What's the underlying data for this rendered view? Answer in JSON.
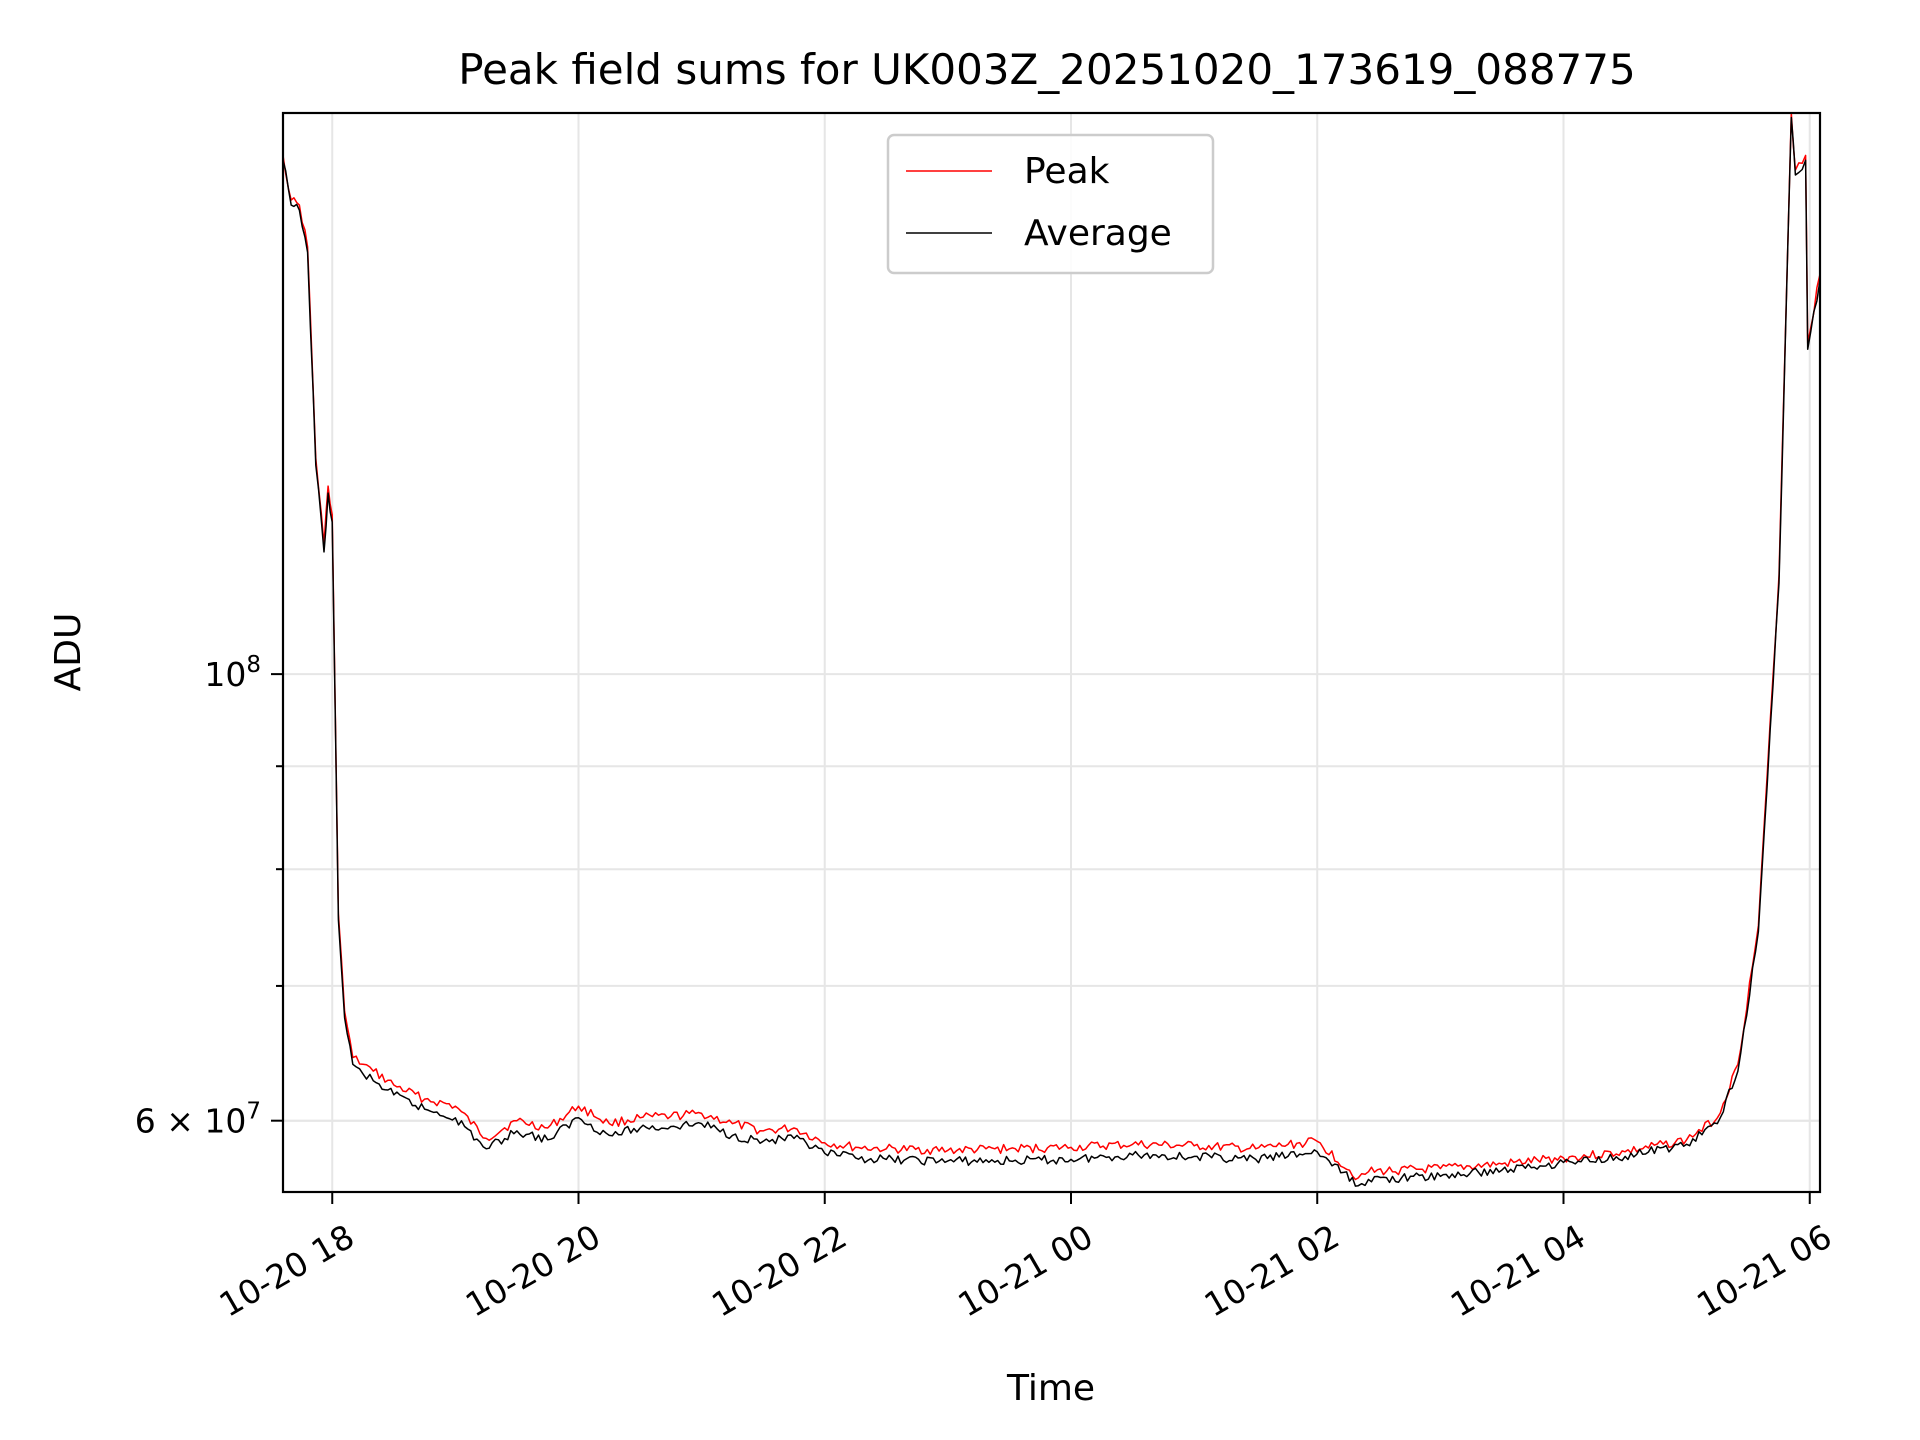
{
  "chart_data": {
    "type": "line",
    "title": "Peak field sums for UK003Z_20251020_173619_088775",
    "xlabel": "Time",
    "ylabel": "ADU",
    "yscale": "log",
    "xlim": [
      "2025-10-20 17:36",
      "2025-10-21 06:05"
    ],
    "ylim": [
      55300000,
      190000000
    ],
    "grid": true,
    "legend_position": "top-center",
    "x_ticks": [
      {
        "label": "10-20 18",
        "value": "2025-10-20 18:00"
      },
      {
        "label": "10-20 20",
        "value": "2025-10-20 20:00"
      },
      {
        "label": "10-20 22",
        "value": "2025-10-20 22:00"
      },
      {
        "label": "10-21 00",
        "value": "2025-10-21 00:00"
      },
      {
        "label": "10-21 02",
        "value": "2025-10-21 02:00"
      },
      {
        "label": "10-21 04",
        "value": "2025-10-21 04:00"
      },
      {
        "label": "10-21 06",
        "value": "2025-10-21 06:00"
      }
    ],
    "y_major_ticks": [
      {
        "label": "10",
        "sup": "8",
        "value": 100000000
      },
      {
        "label": "6 × 10",
        "sup": "7",
        "value": 60000000
      }
    ],
    "y_minor_ticks": [
      60000000,
      70000000,
      80000000,
      90000000
    ],
    "series": [
      {
        "name": "Peak",
        "color": "#ff0000",
        "x": [
          "2025-10-20 17:36",
          "2025-10-20 17:40",
          "2025-10-20 17:44",
          "2025-10-20 17:48",
          "2025-10-20 17:52",
          "2025-10-20 17:56",
          "2025-10-20 17:58",
          "2025-10-20 18:00",
          "2025-10-20 18:03",
          "2025-10-20 18:06",
          "2025-10-20 18:10",
          "2025-10-20 18:15",
          "2025-10-20 18:20",
          "2025-10-20 18:30",
          "2025-10-20 18:45",
          "2025-10-20 19:00",
          "2025-10-20 19:15",
          "2025-10-20 19:30",
          "2025-10-20 19:45",
          "2025-10-20 20:00",
          "2025-10-20 20:15",
          "2025-10-20 20:30",
          "2025-10-20 20:45",
          "2025-10-20 21:00",
          "2025-10-20 21:15",
          "2025-10-20 21:30",
          "2025-10-20 21:45",
          "2025-10-20 22:00",
          "2025-10-20 22:15",
          "2025-10-20 22:30",
          "2025-10-20 23:00",
          "2025-10-20 23:30",
          "2025-10-21 00:00",
          "2025-10-21 00:30",
          "2025-10-21 01:00",
          "2025-10-21 01:30",
          "2025-10-21 02:00",
          "2025-10-21 02:20",
          "2025-10-21 02:25",
          "2025-10-21 03:00",
          "2025-10-21 03:30",
          "2025-10-21 04:00",
          "2025-10-21 04:30",
          "2025-10-21 05:00",
          "2025-10-21 05:15",
          "2025-10-21 05:25",
          "2025-10-21 05:35",
          "2025-10-21 05:45",
          "2025-10-21 05:51",
          "2025-10-21 05:53",
          "2025-10-21 05:58",
          "2025-10-21 05:59",
          "2025-10-21 06:05"
        ],
        "values": [
          181000000,
          172000000,
          171000000,
          163000000,
          128000000,
          116000000,
          124000000,
          120000000,
          76000000,
          68000000,
          64500000,
          64000000,
          63500000,
          62500000,
          61500000,
          61000000,
          58800000,
          60000000,
          59500000,
          61000000,
          59800000,
          60200000,
          60300000,
          60500000,
          59800000,
          59300000,
          59500000,
          58500000,
          58200000,
          58100000,
          58000000,
          58100000,
          58200000,
          58400000,
          58300000,
          58100000,
          58600000,
          56200000,
          56600000,
          56800000,
          57100000,
          57500000,
          57900000,
          58700000,
          60200000,
          64000000,
          75000000,
          112000000,
          190000000,
          178000000,
          181000000,
          146000000,
          158000000
        ]
      },
      {
        "name": "Average",
        "color": "#000000",
        "x": [
          "2025-10-20 17:36",
          "2025-10-20 17:40",
          "2025-10-20 17:44",
          "2025-10-20 17:48",
          "2025-10-20 17:52",
          "2025-10-20 17:56",
          "2025-10-20 17:58",
          "2025-10-20 18:00",
          "2025-10-20 18:03",
          "2025-10-20 18:06",
          "2025-10-20 18:10",
          "2025-10-20 18:15",
          "2025-10-20 18:20",
          "2025-10-20 18:30",
          "2025-10-20 18:45",
          "2025-10-20 19:00",
          "2025-10-20 19:15",
          "2025-10-20 19:30",
          "2025-10-20 19:45",
          "2025-10-20 20:00",
          "2025-10-20 20:15",
          "2025-10-20 20:30",
          "2025-10-20 20:45",
          "2025-10-20 21:00",
          "2025-10-20 21:15",
          "2025-10-20 21:30",
          "2025-10-20 21:45",
          "2025-10-20 22:00",
          "2025-10-20 22:15",
          "2025-10-20 22:30",
          "2025-10-20 23:00",
          "2025-10-20 23:30",
          "2025-10-21 00:00",
          "2025-10-21 00:30",
          "2025-10-21 01:00",
          "2025-10-21 01:30",
          "2025-10-21 02:00",
          "2025-10-21 02:20",
          "2025-10-21 02:25",
          "2025-10-21 03:00",
          "2025-10-21 03:30",
          "2025-10-21 04:00",
          "2025-10-21 04:30",
          "2025-10-21 05:00",
          "2025-10-21 05:15",
          "2025-10-21 05:25",
          "2025-10-21 05:35",
          "2025-10-21 05:45",
          "2025-10-21 05:51",
          "2025-10-21 05:53",
          "2025-10-21 05:58",
          "2025-10-21 05:59",
          "2025-10-21 06:05"
        ],
        "values": [
          180000000,
          171000000,
          170000000,
          162000000,
          127000000,
          115000000,
          123000000,
          119000000,
          75500000,
          67500000,
          64000000,
          63300000,
          62800000,
          61800000,
          60800000,
          60200000,
          58100000,
          59300000,
          58700000,
          60200000,
          59000000,
          59500000,
          59600000,
          59800000,
          59000000,
          58600000,
          58800000,
          57800000,
          57500000,
          57400000,
          57300000,
          57300000,
          57400000,
          57700000,
          57600000,
          57400000,
          57900000,
          55700000,
          56100000,
          56300000,
          56700000,
          57200000,
          57600000,
          58400000,
          59800000,
          63500000,
          74500000,
          111000000,
          189000000,
          177000000,
          180000000,
          145000000,
          157000000
        ]
      }
    ]
  }
}
